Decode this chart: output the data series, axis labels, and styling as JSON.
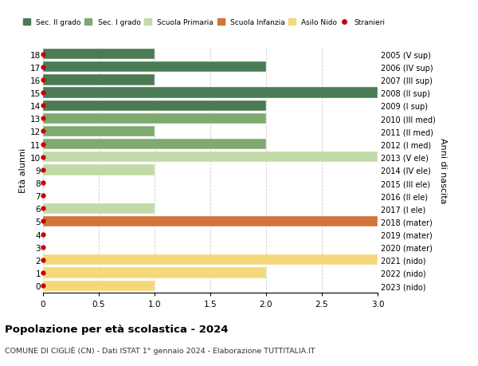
{
  "ages": [
    18,
    17,
    16,
    15,
    14,
    13,
    12,
    11,
    10,
    9,
    8,
    7,
    6,
    5,
    4,
    3,
    2,
    1,
    0
  ],
  "right_labels": [
    "2005 (V sup)",
    "2006 (IV sup)",
    "2007 (III sup)",
    "2008 (II sup)",
    "2009 (I sup)",
    "2010 (III med)",
    "2011 (II med)",
    "2012 (I med)",
    "2013 (V ele)",
    "2014 (IV ele)",
    "2015 (III ele)",
    "2016 (II ele)",
    "2017 (I ele)",
    "2018 (mater)",
    "2019 (mater)",
    "2020 (mater)",
    "2021 (nido)",
    "2022 (nido)",
    "2023 (nido)"
  ],
  "bars": [
    {
      "age": 18,
      "value": 1.0,
      "color": "#4a7b55"
    },
    {
      "age": 17,
      "value": 2.0,
      "color": "#4a7b55"
    },
    {
      "age": 16,
      "value": 1.0,
      "color": "#4a7b55"
    },
    {
      "age": 15,
      "value": 3.0,
      "color": "#4a7b55"
    },
    {
      "age": 14,
      "value": 2.0,
      "color": "#4a7b55"
    },
    {
      "age": 13,
      "value": 2.0,
      "color": "#7faa6e"
    },
    {
      "age": 12,
      "value": 1.0,
      "color": "#7faa6e"
    },
    {
      "age": 11,
      "value": 2.0,
      "color": "#7faa6e"
    },
    {
      "age": 10,
      "value": 3.0,
      "color": "#c2d9a8"
    },
    {
      "age": 9,
      "value": 1.0,
      "color": "#c2d9a8"
    },
    {
      "age": 8,
      "value": 0.0,
      "color": "#c2d9a8"
    },
    {
      "age": 7,
      "value": 0.0,
      "color": "#c2d9a8"
    },
    {
      "age": 6,
      "value": 1.0,
      "color": "#c2d9a8"
    },
    {
      "age": 5,
      "value": 3.0,
      "color": "#d4733a"
    },
    {
      "age": 4,
      "value": 0.0,
      "color": "#d4733a"
    },
    {
      "age": 3,
      "value": 0.0,
      "color": "#d4733a"
    },
    {
      "age": 2,
      "value": 3.0,
      "color": "#f5d87a"
    },
    {
      "age": 1,
      "value": 2.0,
      "color": "#f5d87a"
    },
    {
      "age": 0,
      "value": 1.0,
      "color": "#f5d87a"
    }
  ],
  "stranieri_ages": [
    18,
    17,
    16,
    15,
    14,
    13,
    12,
    11,
    10,
    9,
    8,
    7,
    6,
    5,
    4,
    3,
    2,
    1,
    0
  ],
  "legend": [
    {
      "label": "Sec. II grado",
      "color": "#4a7b55",
      "type": "patch"
    },
    {
      "label": "Sec. I grado",
      "color": "#7faa6e",
      "type": "patch"
    },
    {
      "label": "Scuola Primaria",
      "color": "#c2d9a8",
      "type": "patch"
    },
    {
      "label": "Scuola Infanzia",
      "color": "#d4733a",
      "type": "patch"
    },
    {
      "label": "Asilo Nido",
      "color": "#f5d87a",
      "type": "patch"
    },
    {
      "label": "Stranieri",
      "color": "#cc0000",
      "type": "dot"
    }
  ],
  "title": "Popolazione per età scolastica - 2024",
  "subtitle": "COMUNE DI CIGLIÈ (CN) - Dati ISTAT 1° gennaio 2024 - Elaborazione TUTTITALIA.IT",
  "ylabel_left": "Età alunni",
  "ylabel_right": "Anni di nascita",
  "xlim": [
    0,
    3.0
  ],
  "xticks": [
    0,
    0.5,
    1.0,
    1.5,
    2.0,
    2.5,
    3.0
  ],
  "xtick_labels": [
    "0",
    "0.5",
    "1.0",
    "1.5",
    "2.0",
    "2.5",
    "3.0"
  ],
  "bg_color": "#ffffff",
  "grid_color": "#cccccc",
  "bar_height": 0.82,
  "dot_color": "#cc0000",
  "dot_size": 3.5
}
